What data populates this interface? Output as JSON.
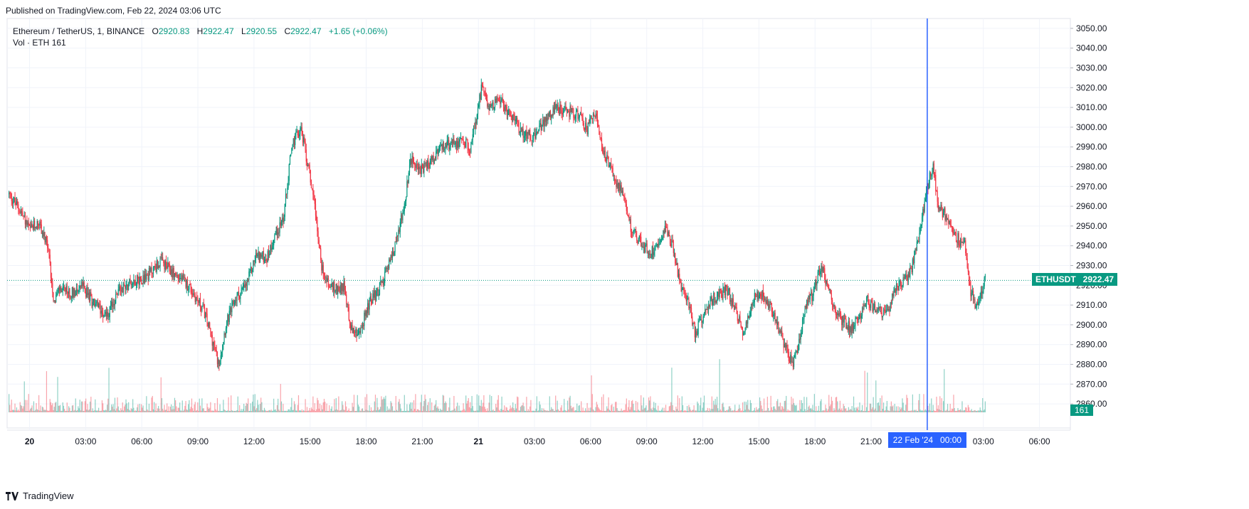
{
  "header": {
    "published": "Published on TradingView.com, Feb 22, 2024 03:06 UTC"
  },
  "legend": {
    "symbol": "Ethereum / TetherUS, 1, BINANCE",
    "o_label": "O",
    "o_value": "2920.83",
    "h_label": "H",
    "h_value": "2922.47",
    "l_label": "L",
    "l_value": "2920.55",
    "c_label": "C",
    "c_value": "2922.47",
    "change": "+1.65 (+0.06%)",
    "volume_label": "Vol · ETH",
    "volume_value": "161"
  },
  "price_badge": {
    "ticker": "ETHUSDT",
    "price": "2922.47"
  },
  "volume_badge": "161",
  "crosshair_date": "22 Feb '24   00:00",
  "footer": {
    "brand": "TradingView"
  },
  "colors": {
    "up": "#089981",
    "down": "#f23645",
    "crosshair": "#2962ff",
    "grid": "#f0f3fa"
  },
  "chart_data": {
    "type": "candlestick",
    "symbol": "ETHUSDT",
    "interval": "1",
    "exchange": "BINANCE",
    "ylim": [
      2855,
      3055
    ],
    "y_ticks": [
      2860,
      2870,
      2880,
      2890,
      2900,
      2910,
      2920,
      2930,
      2940,
      2950,
      2960,
      2970,
      2980,
      2990,
      3000,
      3010,
      3020,
      3030,
      3040,
      3050
    ],
    "x_tick_labels": [
      "20",
      "03:00",
      "06:00",
      "09:00",
      "12:00",
      "15:00",
      "18:00",
      "21:00",
      "21",
      "03:00",
      "06:00",
      "09:00",
      "12:00",
      "15:00",
      "18:00",
      "21:00",
      "00:00",
      "03:00",
      "06:00"
    ],
    "x_tick_hours": [
      0,
      3,
      6,
      9,
      12,
      15,
      18,
      21,
      24,
      27,
      30,
      33,
      36,
      39,
      42,
      45,
      48,
      51,
      54
    ],
    "x_range_hours": [
      -1.2,
      55.5
    ],
    "last_hour": 51.1,
    "crosshair_hour": 48,
    "last_price": 2922.47,
    "price_path": [
      [
        -1.1,
        2966
      ],
      [
        -0.5,
        2958
      ],
      [
        0,
        2948
      ],
      [
        0.5,
        2952
      ],
      [
        1.0,
        2938
      ],
      [
        1.3,
        2912
      ],
      [
        1.6,
        2918
      ],
      [
        2.2,
        2916
      ],
      [
        2.8,
        2920
      ],
      [
        3.5,
        2910
      ],
      [
        4.2,
        2905
      ],
      [
        4.8,
        2918
      ],
      [
        5.5,
        2922
      ],
      [
        6.2,
        2924
      ],
      [
        7.0,
        2932
      ],
      [
        7.7,
        2926
      ],
      [
        8.5,
        2920
      ],
      [
        9.0,
        2912
      ],
      [
        9.3,
        2908
      ],
      [
        9.7,
        2895
      ],
      [
        10.1,
        2880
      ],
      [
        10.5,
        2900
      ],
      [
        11.0,
        2913
      ],
      [
        11.6,
        2920
      ],
      [
        12.1,
        2935
      ],
      [
        12.7,
        2934
      ],
      [
        13.1,
        2945
      ],
      [
        13.6,
        2955
      ],
      [
        14.0,
        2990
      ],
      [
        14.5,
        3000
      ],
      [
        14.8,
        2985
      ],
      [
        15.2,
        2965
      ],
      [
        15.6,
        2930
      ],
      [
        16.0,
        2920
      ],
      [
        16.4,
        2918
      ],
      [
        16.8,
        2920
      ],
      [
        17.2,
        2898
      ],
      [
        17.6,
        2894
      ],
      [
        18.1,
        2910
      ],
      [
        18.7,
        2918
      ],
      [
        19.4,
        2935
      ],
      [
        20.0,
        2958
      ],
      [
        20.4,
        2984
      ],
      [
        21.0,
        2978
      ],
      [
        21.6,
        2984
      ],
      [
        22.1,
        2990
      ],
      [
        23.0,
        2993
      ],
      [
        23.6,
        2990
      ],
      [
        24.0,
        3010
      ],
      [
        24.2,
        3022
      ],
      [
        24.5,
        3010
      ],
      [
        25.0,
        3014
      ],
      [
        25.6,
        3008
      ],
      [
        26.3,
        2998
      ],
      [
        27.0,
        2995
      ],
      [
        27.6,
        3004
      ],
      [
        28.2,
        3010
      ],
      [
        28.8,
        3008
      ],
      [
        29.4,
        3006
      ],
      [
        29.8,
        2998
      ],
      [
        30.2,
        3008
      ],
      [
        30.6,
        2990
      ],
      [
        31.0,
        2980
      ],
      [
        31.6,
        2968
      ],
      [
        32.2,
        2948
      ],
      [
        32.8,
        2940
      ],
      [
        33.2,
        2936
      ],
      [
        33.6,
        2942
      ],
      [
        34.0,
        2950
      ],
      [
        34.4,
        2940
      ],
      [
        34.8,
        2920
      ],
      [
        35.2,
        2912
      ],
      [
        35.6,
        2895
      ],
      [
        36.2,
        2910
      ],
      [
        36.8,
        2915
      ],
      [
        37.3,
        2918
      ],
      [
        37.8,
        2905
      ],
      [
        38.2,
        2896
      ],
      [
        38.7,
        2914
      ],
      [
        39.2,
        2916
      ],
      [
        39.6,
        2910
      ],
      [
        40.0,
        2900
      ],
      [
        40.5,
        2886
      ],
      [
        40.8,
        2880
      ],
      [
        41.1,
        2890
      ],
      [
        41.5,
        2910
      ],
      [
        41.9,
        2916
      ],
      [
        42.3,
        2930
      ],
      [
        42.7,
        2920
      ],
      [
        43.1,
        2905
      ],
      [
        43.5,
        2902
      ],
      [
        43.9,
        2898
      ],
      [
        44.3,
        2904
      ],
      [
        44.8,
        2912
      ],
      [
        45.3,
        2908
      ],
      [
        45.8,
        2905
      ],
      [
        46.3,
        2918
      ],
      [
        46.8,
        2922
      ],
      [
        47.2,
        2930
      ],
      [
        47.6,
        2946
      ],
      [
        48.0,
        2970
      ],
      [
        48.3,
        2980
      ],
      [
        48.6,
        2960
      ],
      [
        49.0,
        2955
      ],
      [
        49.5,
        2945
      ],
      [
        50.0,
        2940
      ],
      [
        50.3,
        2918
      ],
      [
        50.6,
        2910
      ],
      [
        51.1,
        2922.47
      ]
    ],
    "volume_last": 161
  }
}
